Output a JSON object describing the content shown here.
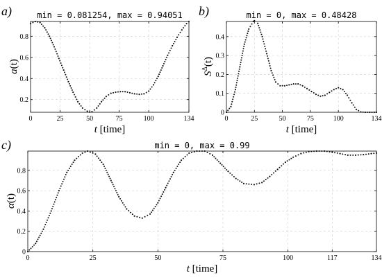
{
  "chart_data": [
    {
      "type": "scatter",
      "panel_label": "a)",
      "title": "min = 0.081254, max = 0.94051",
      "xlabel": "t [time]",
      "ylabel": "a(t)",
      "xlim": [
        0,
        134
      ],
      "ylim": [
        0.08,
        0.94
      ],
      "xticks": [
        0,
        25,
        50,
        75,
        100,
        134
      ],
      "yticks": [
        0.2,
        0.4,
        0.6,
        0.8
      ],
      "grid": true,
      "x": [
        0,
        4,
        8,
        12,
        16,
        20,
        24,
        28,
        32,
        36,
        40,
        44,
        48,
        50,
        52,
        56,
        60,
        64,
        68,
        72,
        76,
        80,
        84,
        88,
        92,
        96,
        100,
        104,
        108,
        112,
        116,
        120,
        124,
        128,
        132,
        134
      ],
      "y": [
        0.92,
        0.94,
        0.93,
        0.88,
        0.8,
        0.7,
        0.59,
        0.48,
        0.37,
        0.27,
        0.18,
        0.12,
        0.09,
        0.082,
        0.085,
        0.12,
        0.18,
        0.23,
        0.26,
        0.27,
        0.275,
        0.275,
        0.265,
        0.255,
        0.25,
        0.255,
        0.28,
        0.34,
        0.42,
        0.52,
        0.62,
        0.71,
        0.79,
        0.86,
        0.92,
        0.94
      ]
    },
    {
      "type": "scatter",
      "panel_label": "b)",
      "title": "min = 0, max = 0.48428",
      "xlabel": "t [time]",
      "ylabel": "S^Δ(t)",
      "xlim": [
        0,
        134
      ],
      "ylim": [
        0,
        0.48
      ],
      "xticks": [
        0,
        25,
        50,
        75,
        100,
        134
      ],
      "yticks": [
        0,
        0.1,
        0.2,
        0.3,
        0.4
      ],
      "grid": true,
      "x": [
        0,
        4,
        8,
        12,
        16,
        20,
        24,
        25,
        28,
        32,
        36,
        40,
        44,
        48,
        52,
        56,
        60,
        64,
        68,
        72,
        76,
        80,
        84,
        88,
        92,
        96,
        100,
        104,
        108,
        112,
        116,
        120,
        124,
        128,
        132,
        134
      ],
      "y": [
        0,
        0.03,
        0.12,
        0.24,
        0.36,
        0.44,
        0.48,
        0.484,
        0.47,
        0.4,
        0.31,
        0.22,
        0.16,
        0.14,
        0.14,
        0.145,
        0.15,
        0.15,
        0.14,
        0.125,
        0.11,
        0.095,
        0.085,
        0.09,
        0.105,
        0.12,
        0.13,
        0.12,
        0.09,
        0.05,
        0.015,
        0.002,
        0,
        0,
        0,
        0
      ]
    },
    {
      "type": "scatter",
      "panel_label": "c)",
      "title": "min = 0, max = 0.99",
      "xlabel": "t [time]",
      "ylabel": "α(t)",
      "xlim": [
        0,
        134
      ],
      "ylim": [
        0,
        0.99
      ],
      "xticks": [
        0,
        25,
        50,
        75,
        100,
        117,
        134
      ],
      "yticks": [
        0,
        0.2,
        0.4,
        0.6,
        0.8
      ],
      "grid": true,
      "x": [
        0,
        3,
        6,
        9,
        12,
        15,
        18,
        21,
        23,
        26,
        29,
        32,
        35,
        38,
        41,
        44,
        47,
        50,
        53,
        56,
        59,
        62,
        65,
        68,
        71,
        74,
        77,
        80,
        83,
        87,
        90,
        93,
        96,
        99,
        102,
        105,
        108,
        111,
        114,
        117,
        120,
        123,
        126,
        129,
        132,
        134
      ],
      "y": [
        0,
        0.08,
        0.22,
        0.4,
        0.6,
        0.78,
        0.9,
        0.97,
        0.99,
        0.96,
        0.86,
        0.7,
        0.54,
        0.42,
        0.35,
        0.33,
        0.37,
        0.48,
        0.63,
        0.78,
        0.9,
        0.97,
        0.99,
        0.99,
        0.95,
        0.87,
        0.79,
        0.72,
        0.67,
        0.66,
        0.68,
        0.74,
        0.81,
        0.88,
        0.93,
        0.965,
        0.985,
        0.99,
        0.99,
        0.98,
        0.965,
        0.95,
        0.95,
        0.955,
        0.965,
        0.97
      ]
    }
  ]
}
